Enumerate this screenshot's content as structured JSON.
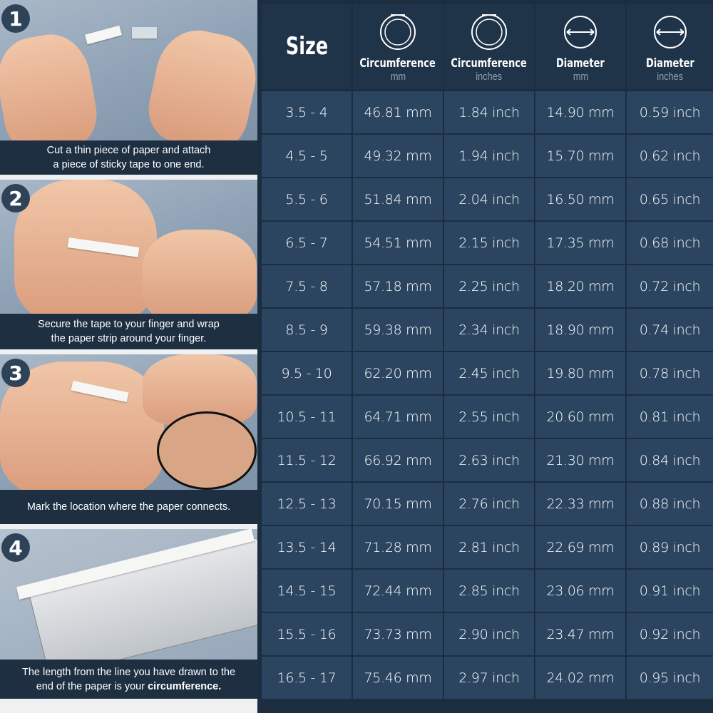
{
  "steps": [
    {
      "number": "1",
      "caption_lines": [
        "Cut a thin piece of paper and attach",
        "a piece of sticky tape to one end."
      ]
    },
    {
      "number": "2",
      "caption_lines": [
        "Secure the tape to your finger and wrap",
        "the paper strip around your finger."
      ]
    },
    {
      "number": "3",
      "caption_lines": [
        "Mark the location where the paper connects."
      ]
    },
    {
      "number": "4",
      "caption_lines": [
        "The length from the line you have drawn to the",
        "end of the paper is your "
      ],
      "caption_bold": "circumference."
    }
  ],
  "table": {
    "headers": [
      {
        "title": "Size",
        "unit": "",
        "icon": ""
      },
      {
        "title": "Circumference",
        "unit": "mm",
        "icon": "ring-circumference-icon"
      },
      {
        "title": "Circumference",
        "unit": "inches",
        "icon": "ring-circumference-icon"
      },
      {
        "title": "Diameter",
        "unit": "mm",
        "icon": "ring-diameter-icon"
      },
      {
        "title": "Diameter",
        "unit": "inches",
        "icon": "ring-diameter-icon"
      }
    ],
    "rows": [
      [
        "3.5 - 4",
        "46.81 mm",
        "1.84 inch",
        "14.90 mm",
        "0.59 inch"
      ],
      [
        "4.5 - 5",
        "49.32 mm",
        "1.94 inch",
        "15.70 mm",
        "0.62 inch"
      ],
      [
        "5.5 - 6",
        "51.84 mm",
        "2.04 inch",
        "16.50 mm",
        "0.65 inch"
      ],
      [
        "6.5 - 7",
        "54.51 mm",
        "2.15 inch",
        "17.35 mm",
        "0.68 inch"
      ],
      [
        "7.5 - 8",
        "57.18 mm",
        "2.25 inch",
        "18.20 mm",
        "0.72 inch"
      ],
      [
        "8.5 - 9",
        "59.38 mm",
        "2.34 inch",
        "18.90 mm",
        "0.74 inch"
      ],
      [
        "9.5 - 10",
        "62.20 mm",
        "2.45 inch",
        "19.80 mm",
        "0.78 inch"
      ],
      [
        "10.5 - 11",
        "64.71 mm",
        "2.55 inch",
        "20.60 mm",
        "0.81 inch"
      ],
      [
        "11.5 - 12",
        "66.92 mm",
        "2.63 inch",
        "21.30 mm",
        "0.84 inch"
      ],
      [
        "12.5 - 13",
        "70.15 mm",
        "2.76 inch",
        "22.33 mm",
        "0.88 inch"
      ],
      [
        "13.5 - 14",
        "71.28 mm",
        "2.81 inch",
        "22.69 mm",
        "0.89 inch"
      ],
      [
        "14.5 - 15",
        "72.44 mm",
        "2.85 inch",
        "23.06 mm",
        "0.91 inch"
      ],
      [
        "15.5 - 16",
        "73.73 mm",
        "2.90 inch",
        "23.47 mm",
        "0.92 inch"
      ],
      [
        "16.5 - 17",
        "75.46 mm",
        "2.97 inch",
        "24.02 mm",
        "0.95 inch"
      ]
    ]
  },
  "colors": {
    "table_bg": "#1c2d40",
    "cell_bg": "#2b4560",
    "caption_bg": "#1e2f42",
    "step_badge": "#2f4358"
  }
}
